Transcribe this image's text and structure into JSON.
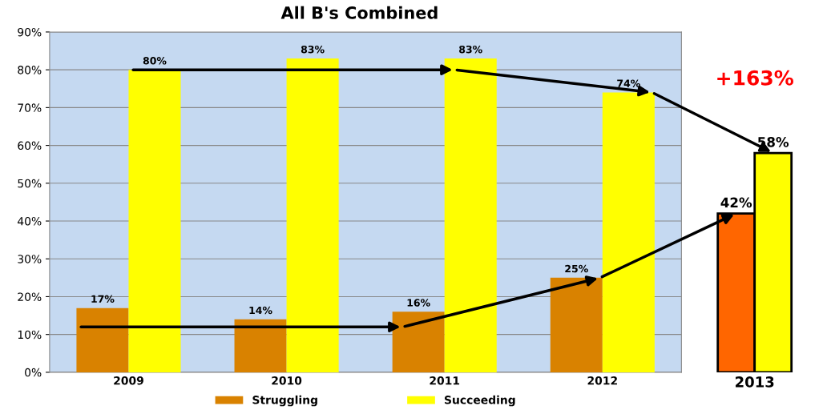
{
  "chart_data": [
    {
      "type": "bar",
      "title": "All B's Combined",
      "categories": [
        "2009",
        "2010",
        "2011",
        "2012"
      ],
      "series": [
        {
          "name": "Struggling",
          "color": "#d98200",
          "values": [
            17,
            14,
            16,
            25
          ],
          "value_labels": [
            "17%",
            "14%",
            "16%",
            "25%"
          ]
        },
        {
          "name": "Succeeding",
          "color": "#ffff00",
          "values": [
            80,
            83,
            83,
            74
          ],
          "value_labels": [
            "80%",
            "83%",
            "83%",
            "74%"
          ]
        }
      ],
      "ylim": [
        0,
        90
      ],
      "yticks": [
        {
          "value": 0,
          "label": "0%"
        },
        {
          "value": 10,
          "label": "10%"
        },
        {
          "value": 20,
          "label": "20%"
        },
        {
          "value": 30,
          "label": "30%"
        },
        {
          "value": 40,
          "label": "40%"
        },
        {
          "value": 50,
          "label": "50%"
        },
        {
          "value": 60,
          "label": "60%"
        },
        {
          "value": 70,
          "label": "70%"
        },
        {
          "value": 80,
          "label": "80%"
        },
        {
          "value": 90,
          "label": "90%"
        }
      ],
      "grid": "y",
      "legend": "bottom"
    },
    {
      "type": "bar",
      "categories": [
        "2013"
      ],
      "series": [
        {
          "color": "#ff6600",
          "values": [
            42
          ],
          "value_labels": [
            "42%"
          ]
        },
        {
          "color": "#ffff00",
          "values": [
            58
          ],
          "value_labels": [
            "58%"
          ]
        }
      ],
      "ylim": [
        0,
        90
      ],
      "tick_labels": "x",
      "annotations": [
        "+163%"
      ]
    }
  ]
}
